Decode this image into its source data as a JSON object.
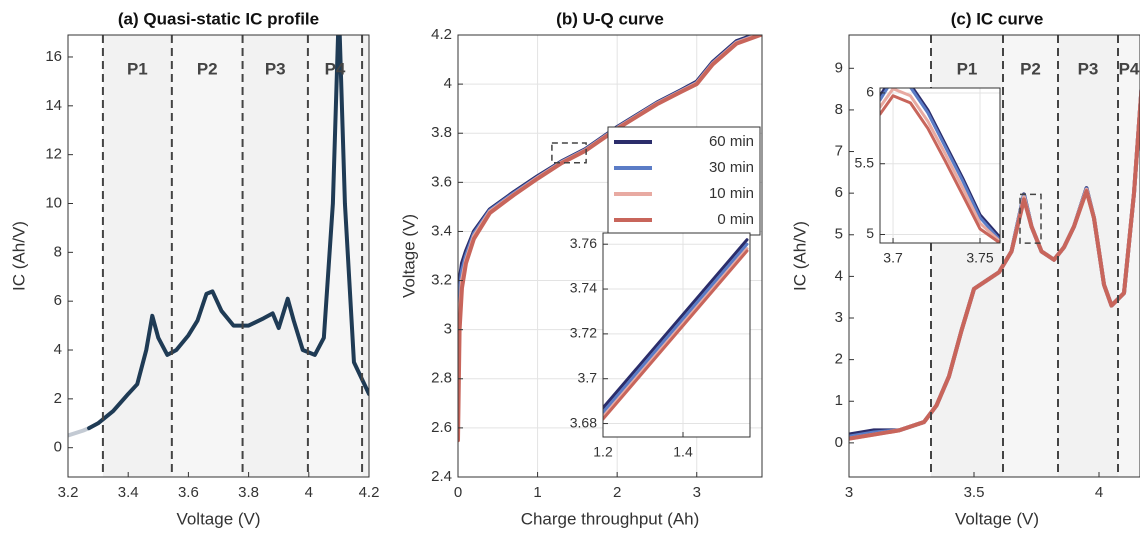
{
  "chart_data": [
    {
      "type": "line",
      "title": "(a) Quasi-static IC profile",
      "xlabel": "Voltage (V)",
      "ylabel": "IC (Ah/V)",
      "xlim": [
        3.2,
        4.2
      ],
      "ylim": [
        -1.2,
        16.9
      ],
      "xticks": [
        3.2,
        3.4,
        3.6,
        3.8,
        4,
        4.2
      ],
      "yticks": [
        0,
        2,
        4,
        6,
        8,
        10,
        12,
        14,
        16
      ],
      "vlines": [
        3.316,
        3.545,
        3.78,
        3.997,
        4.177
      ],
      "region_labels": [
        "P1",
        "P2",
        "P3",
        "P4"
      ],
      "x": [
        3.2,
        3.25,
        3.27,
        3.3,
        3.35,
        3.4,
        3.43,
        3.46,
        3.48,
        3.5,
        3.53,
        3.56,
        3.6,
        3.63,
        3.66,
        3.68,
        3.71,
        3.75,
        3.8,
        3.85,
        3.88,
        3.9,
        3.93,
        3.95,
        3.98,
        4.02,
        4.05,
        4.08,
        4.1,
        4.12,
        4.15,
        4.2
      ],
      "series": [
        {
          "color": "#c3cad3",
          "values": [
            0.5,
            0.7,
            0.8,
            null,
            null,
            null,
            null,
            null,
            null,
            null,
            null,
            null,
            null,
            null,
            null,
            null,
            null,
            null,
            null,
            null,
            null,
            null,
            null,
            null,
            null,
            null,
            null,
            null,
            null,
            null,
            null,
            null
          ]
        },
        {
          "color": "#1f3b55",
          "values": [
            null,
            null,
            0.8,
            1.0,
            1.5,
            2.2,
            2.6,
            4.0,
            5.4,
            4.5,
            3.8,
            4.0,
            4.6,
            5.2,
            6.3,
            6.4,
            5.6,
            5.0,
            5.0,
            5.3,
            5.5,
            4.9,
            6.1,
            5.2,
            4.0,
            3.8,
            4.5,
            10,
            18,
            10,
            3.5,
            2.2
          ]
        }
      ]
    },
    {
      "type": "line",
      "title": "(b) U-Q curve",
      "xlabel": "Charge throughput (Ah)",
      "ylabel": "Voltage (V)",
      "xlim": [
        0,
        3.82
      ],
      "ylim": [
        2.4,
        4.2
      ],
      "grid": true,
      "legend": "upper right",
      "xticks": [
        0,
        1,
        2,
        3
      ],
      "yticks": [
        2.4,
        2.6,
        2.8,
        3,
        3.2,
        3.4,
        3.6,
        3.8,
        4,
        4.2
      ],
      "zoom_box": {
        "x": [
          1.18,
          1.61
        ],
        "y": [
          3.68,
          3.76
        ]
      },
      "x": [
        0,
        0.02,
        0.05,
        0.1,
        0.2,
        0.4,
        0.7,
        1,
        1.3,
        1.6,
        2,
        2.5,
        2.8,
        3,
        3.2,
        3.5,
        3.8
      ],
      "series": [
        {
          "name": "60 min",
          "color": "#2b2d6b",
          "values": [
            3.1,
            3.2,
            3.27,
            3.32,
            3.4,
            3.49,
            3.56,
            3.625,
            3.685,
            3.735,
            3.825,
            3.925,
            3.975,
            4.01,
            4.09,
            4.175,
            4.21
          ]
        },
        {
          "name": "30 min",
          "color": "#5b7cc6",
          "values": [
            3.0,
            3.15,
            3.24,
            3.3,
            3.39,
            3.485,
            3.555,
            3.62,
            3.682,
            3.732,
            3.822,
            3.922,
            3.972,
            4.005,
            4.085,
            4.17,
            4.205
          ]
        },
        {
          "name": "10 min",
          "color": "#e8aaa2",
          "values": [
            2.7,
            3.05,
            3.2,
            3.28,
            3.38,
            3.48,
            3.55,
            3.618,
            3.68,
            3.73,
            3.82,
            3.92,
            3.97,
            4.003,
            4.082,
            4.168,
            4.203
          ]
        },
        {
          "name": "0 min",
          "color": "#c8655b",
          "values": [
            2.55,
            3.0,
            3.17,
            3.27,
            3.37,
            3.475,
            3.548,
            3.615,
            3.678,
            3.728,
            3.818,
            3.918,
            3.968,
            4.0,
            4.08,
            4.165,
            4.2
          ]
        }
      ]
    },
    {
      "type": "line",
      "grid": true,
      "xlim": [
        1.2,
        1.5675
      ],
      "ylim": [
        3.674,
        3.765
      ],
      "xticks": [
        1.2,
        1.4
      ],
      "yticks": [
        3.68,
        3.7,
        3.72,
        3.74,
        3.76
      ],
      "x": [
        1.2,
        1.56
      ],
      "series": [
        {
          "color": "#2b2d6b",
          "values": [
            3.687,
            3.762
          ]
        },
        {
          "color": "#5b7cc6",
          "values": [
            3.685,
            3.76
          ]
        },
        {
          "color": "#e8aaa2",
          "values": [
            3.683,
            3.758
          ]
        },
        {
          "color": "#c8655b",
          "values": [
            3.682,
            3.757
          ]
        }
      ]
    },
    {
      "type": "line",
      "title": "(c) IC curve",
      "xlabel": "Voltage (V)",
      "ylabel": "IC (Ah/V)",
      "xlim": [
        3,
        4.164
      ],
      "ylim": [
        -0.82,
        9.8
      ],
      "xticks": [
        3,
        3.5,
        4
      ],
      "yticks": [
        0,
        1,
        2,
        3,
        4,
        5,
        6,
        7,
        8,
        9
      ],
      "vlines": [
        3.328,
        3.616,
        3.836,
        4.076
      ],
      "region_labels": [
        "P1",
        "P2",
        "P3",
        "P4"
      ],
      "zoom_box": {
        "x": [
          3.684,
          3.768
        ],
        "y": [
          4.8,
          5.97
        ]
      },
      "x": [
        3.0,
        3.1,
        3.2,
        3.3,
        3.35,
        3.4,
        3.45,
        3.5,
        3.55,
        3.6,
        3.65,
        3.7,
        3.73,
        3.77,
        3.82,
        3.86,
        3.9,
        3.95,
        3.98,
        4.02,
        4.05,
        4.1,
        4.14,
        4.17
      ],
      "series": [
        {
          "color": "#2b2d6b",
          "values": [
            0.2,
            0.3,
            0.3,
            0.5,
            0.9,
            1.6,
            2.7,
            3.7,
            3.9,
            4.1,
            4.6,
            5.97,
            5.2,
            4.6,
            4.4,
            4.7,
            5.2,
            6.12,
            5.4,
            3.8,
            3.3,
            3.6,
            6.0,
            8.5
          ]
        },
        {
          "color": "#5b7cc6",
          "values": [
            0.15,
            0.25,
            0.3,
            0.5,
            0.9,
            1.6,
            2.7,
            3.7,
            3.9,
            4.1,
            4.6,
            5.95,
            5.2,
            4.6,
            4.4,
            4.7,
            5.2,
            6.1,
            5.4,
            3.8,
            3.3,
            3.6,
            6.0,
            8.5
          ]
        },
        {
          "color": "#e8aaa2",
          "values": [
            0.1,
            0.2,
            0.3,
            0.5,
            0.9,
            1.6,
            2.7,
            3.7,
            3.9,
            4.1,
            4.6,
            5.9,
            5.2,
            4.6,
            4.4,
            4.7,
            5.2,
            6.08,
            5.4,
            3.8,
            3.3,
            3.6,
            6.0,
            8.5
          ]
        },
        {
          "color": "#c8655b",
          "values": [
            0.1,
            0.2,
            0.3,
            0.5,
            0.9,
            1.6,
            2.7,
            3.7,
            3.9,
            4.1,
            4.6,
            5.85,
            5.2,
            4.6,
            4.4,
            4.7,
            5.2,
            6.05,
            5.4,
            3.8,
            3.3,
            3.6,
            6.0,
            8.5
          ]
        }
      ]
    },
    {
      "type": "line",
      "grid": true,
      "xlim": [
        3.6925,
        3.7615
      ],
      "ylim": [
        4.94,
        6.035
      ],
      "xticks": [
        3.7,
        3.75
      ],
      "yticks": [
        5,
        5.5,
        6
      ],
      "x": [
        3.6925,
        3.7,
        3.71,
        3.72,
        3.73,
        3.74,
        3.75,
        3.7615
      ],
      "series": [
        {
          "color": "#2b2d6b",
          "values": [
            5.98,
            6.12,
            6.06,
            5.88,
            5.64,
            5.4,
            5.14,
            4.98
          ]
        },
        {
          "color": "#5b7cc6",
          "values": [
            5.95,
            6.1,
            6.04,
            5.86,
            5.62,
            5.38,
            5.12,
            4.96
          ]
        },
        {
          "color": "#e8aaa2",
          "values": [
            5.9,
            6.03,
            5.98,
            5.8,
            5.57,
            5.33,
            5.08,
            4.95
          ]
        },
        {
          "color": "#c8655b",
          "values": [
            5.85,
            5.98,
            5.93,
            5.75,
            5.52,
            5.28,
            5.04,
            4.94
          ]
        }
      ]
    }
  ]
}
